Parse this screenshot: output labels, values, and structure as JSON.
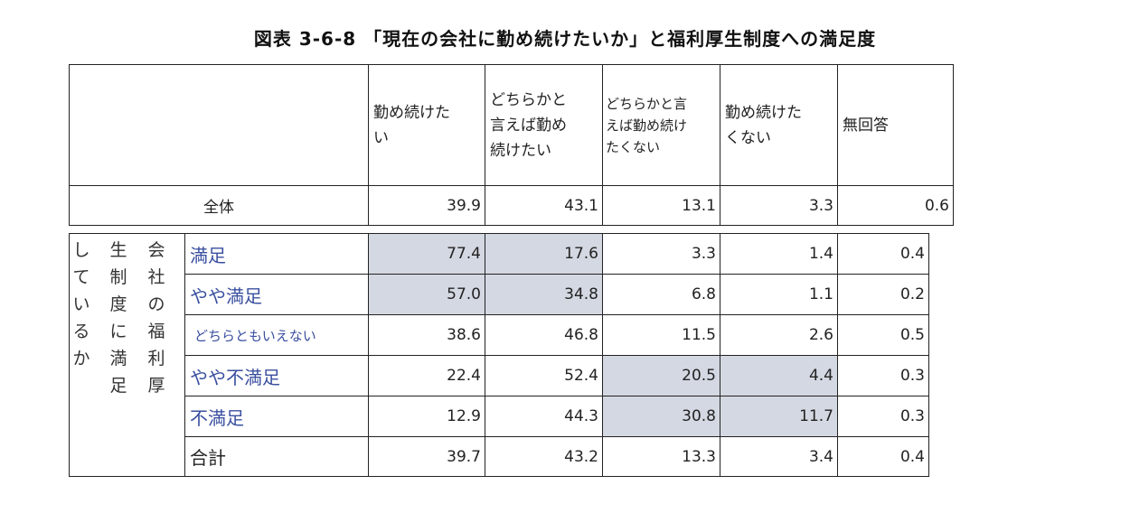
{
  "title": "図表 3-6-8 「現在の会社に勤め続けたいか」と福利厚生制度への満足度",
  "columns": [
    {
      "lines": [
        "勤め続けた",
        "い"
      ]
    },
    {
      "lines": [
        "どちらかと",
        "言えば勤め",
        "続けたい"
      ]
    },
    {
      "lines": [
        "どちらかと言",
        "えば勤め続け",
        "たくない"
      ]
    },
    {
      "lines": [
        "勤め続けた",
        "くない"
      ]
    },
    {
      "lines": [
        "無回答"
      ]
    }
  ],
  "overall": {
    "label": "全体",
    "values": [
      "39.9",
      "43.1",
      "13.1",
      "3.3",
      "0.6"
    ]
  },
  "side_label": {
    "col1": "しているか",
    "col2": "生制度に満足",
    "col3": "会社の福利厚"
  },
  "rows": [
    {
      "label": "満足",
      "values": [
        "77.4",
        "17.6",
        "3.3",
        "1.4",
        "0.4"
      ]
    },
    {
      "label": "やや満足",
      "values": [
        "57.0",
        "34.8",
        "6.8",
        "1.1",
        "0.2"
      ]
    },
    {
      "label": "どちらともいえない",
      "values": [
        "38.6",
        "46.8",
        "11.5",
        "2.6",
        "0.5"
      ]
    },
    {
      "label": "やや不満足",
      "values": [
        "22.4",
        "52.4",
        "20.5",
        "4.4",
        "0.3"
      ]
    },
    {
      "label": "不満足",
      "values": [
        "12.9",
        "44.3",
        "30.8",
        "11.7",
        "0.3"
      ]
    },
    {
      "label": "合計",
      "values": [
        "39.7",
        "43.2",
        "13.3",
        "3.4",
        "0.4"
      ]
    }
  ],
  "colors": {
    "highlight": "#d4d8e2",
    "category_text": "#3a4fa0"
  }
}
